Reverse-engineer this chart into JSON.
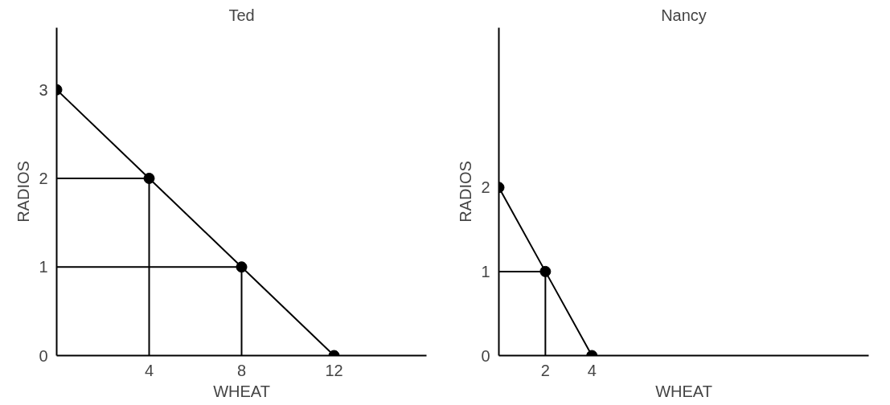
{
  "chart_data": [
    {
      "type": "line",
      "title": "Ted",
      "xlabel": "WHEAT",
      "ylabel": "RADIOS",
      "xlim": [
        0,
        16
      ],
      "ylim": [
        0,
        3.7
      ],
      "xticks": [
        4,
        8,
        12
      ],
      "yticks": [
        0,
        1,
        2,
        3
      ],
      "grid": false,
      "series": [
        {
          "x": [
            0,
            4,
            8,
            12
          ],
          "values": [
            3,
            2,
            1,
            0
          ],
          "color": "#000000",
          "marker": "circle"
        },
        {
          "x": [
            0,
            4,
            4
          ],
          "values": [
            2,
            2,
            0
          ],
          "color": "#000000",
          "marker": "none"
        },
        {
          "x": [
            0,
            8,
            8
          ],
          "values": [
            1,
            1,
            0
          ],
          "color": "#000000",
          "marker": "none"
        }
      ]
    },
    {
      "type": "line",
      "title": "Nancy",
      "xlabel": "WHEAT",
      "ylabel": "RADIOS",
      "xlim": [
        0,
        15.9
      ],
      "ylim": [
        0,
        3.9
      ],
      "xticks": [
        2,
        4
      ],
      "yticks": [
        0,
        1,
        2
      ],
      "grid": false,
      "series": [
        {
          "x": [
            0,
            2,
            4
          ],
          "values": [
            2,
            1,
            0
          ],
          "color": "#000000",
          "marker": "circle"
        },
        {
          "x": [
            0,
            2,
            2
          ],
          "values": [
            1,
            1,
            0
          ],
          "color": "#000000",
          "marker": "none"
        }
      ]
    }
  ]
}
